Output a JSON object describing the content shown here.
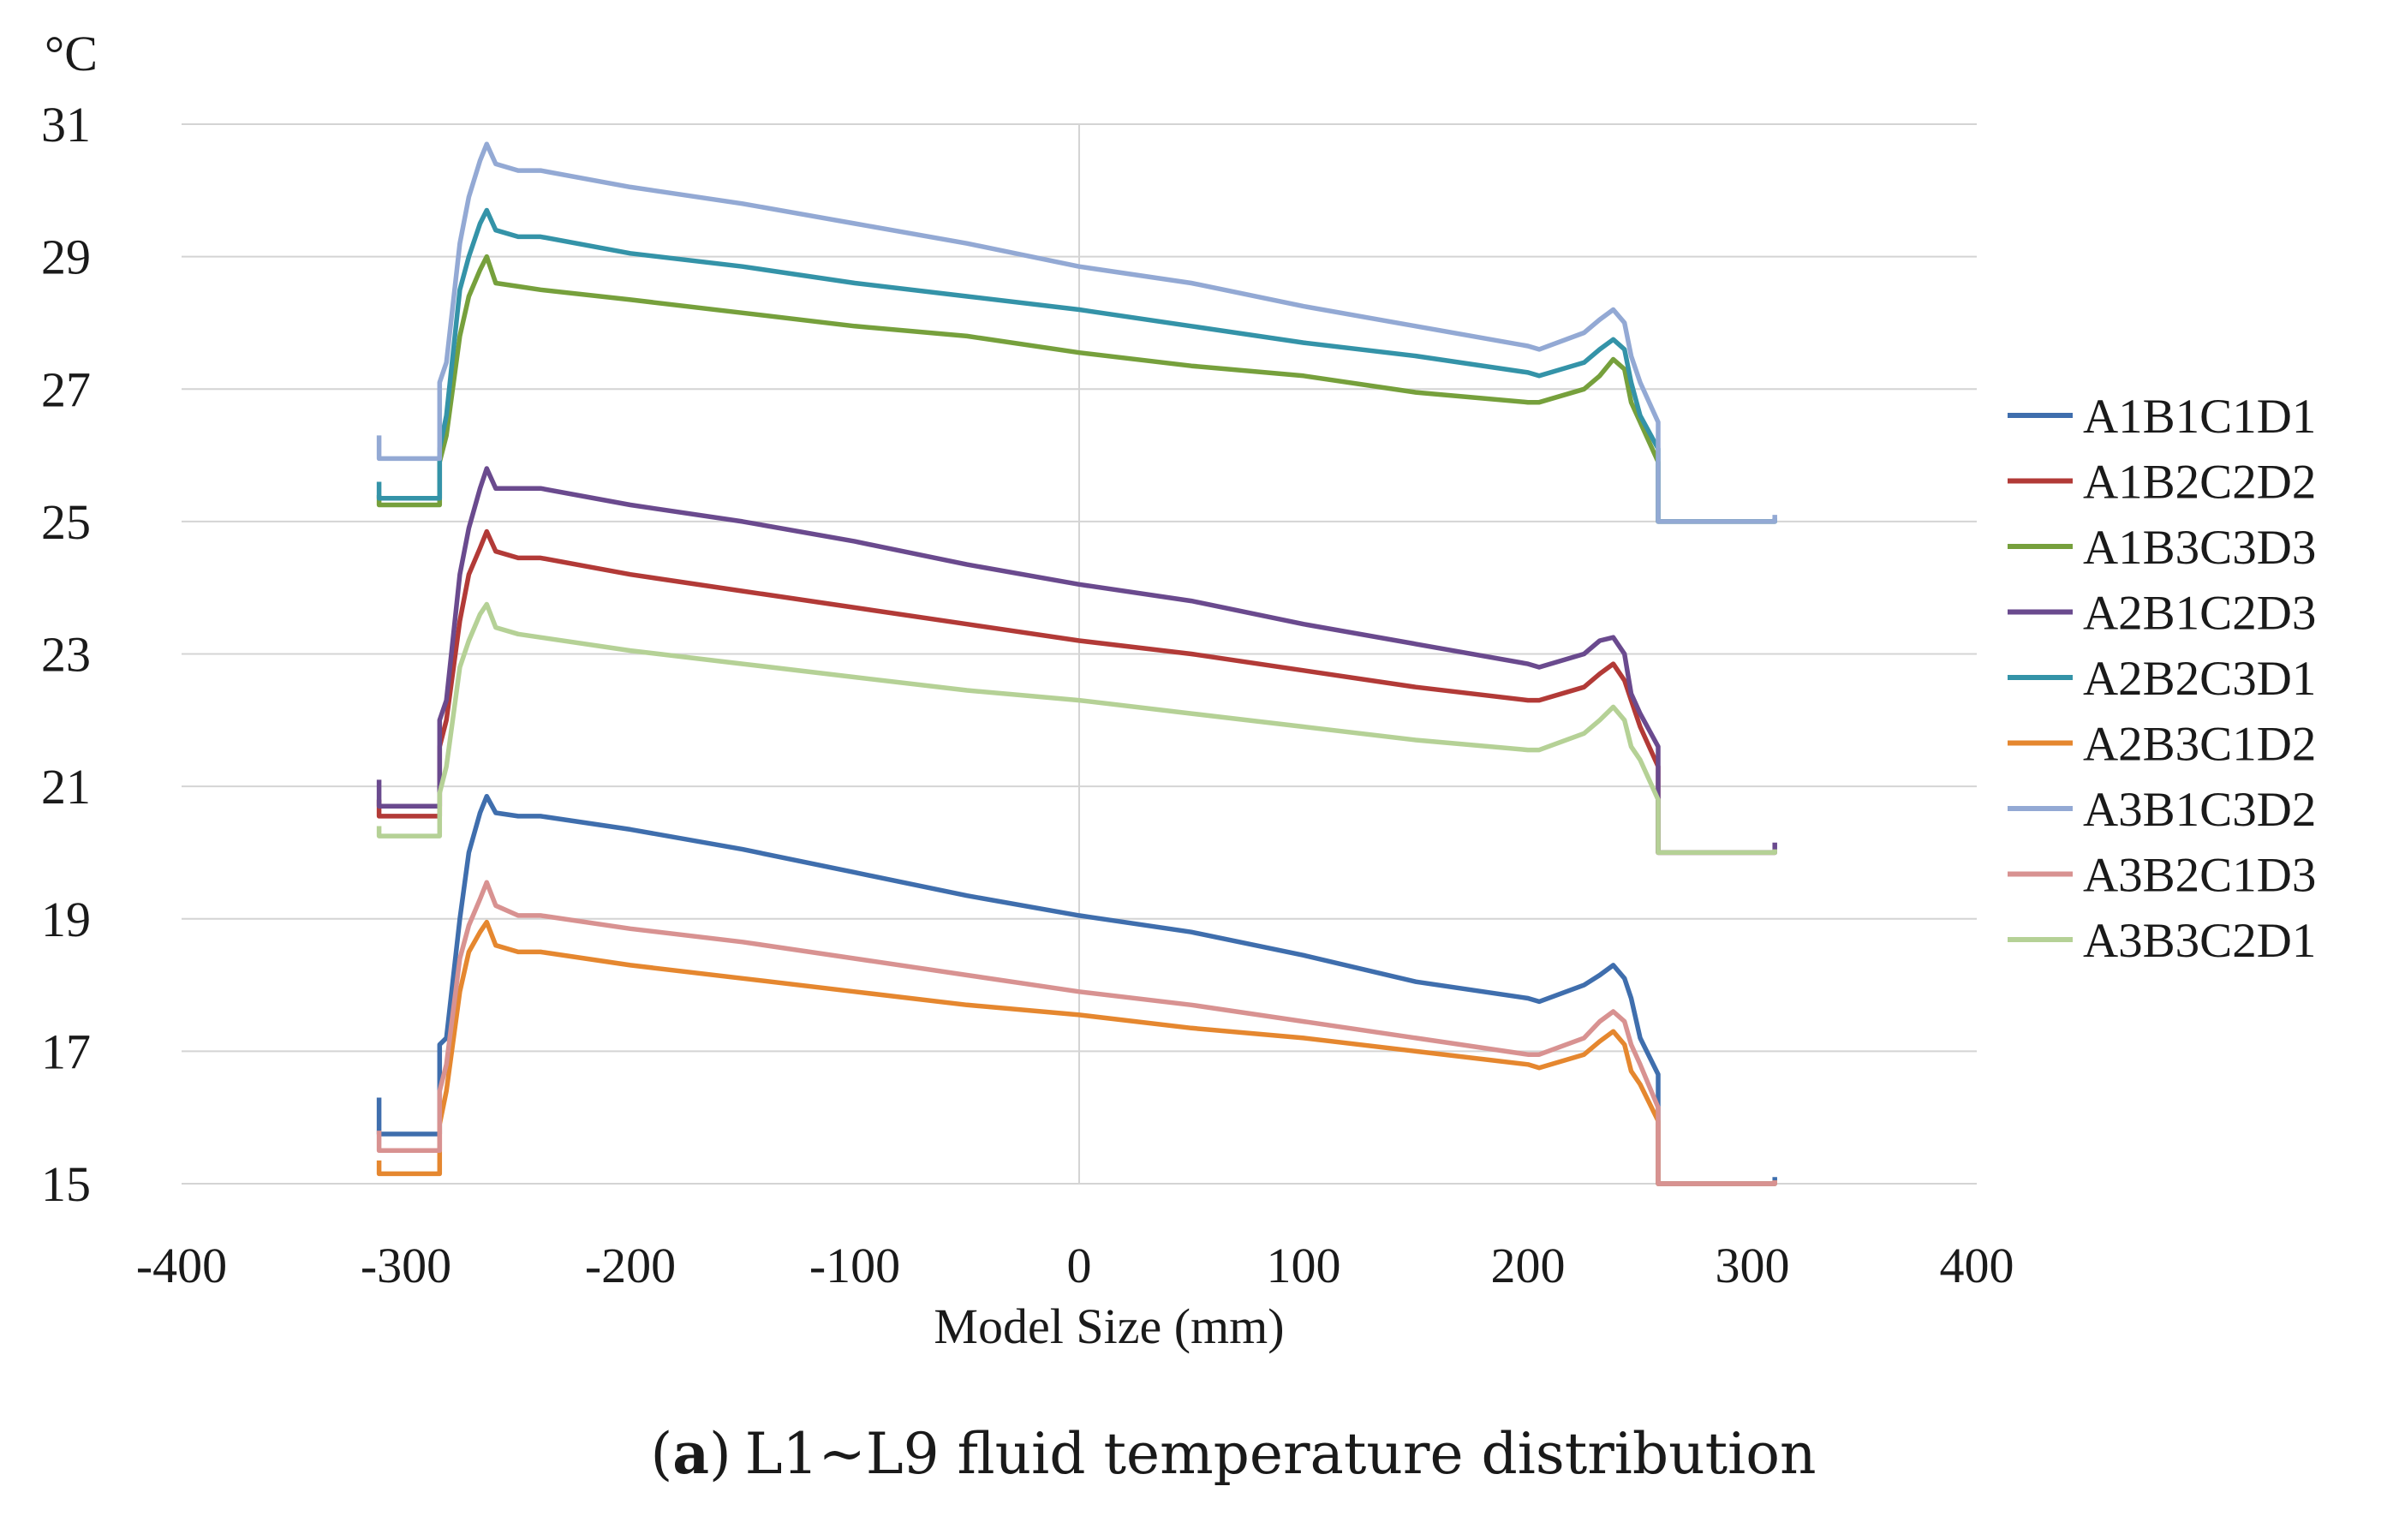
{
  "chart_data": {
    "type": "line",
    "unit_label": "°C",
    "xlabel": "Model Size (mm)",
    "ylabel": "",
    "caption": {
      "letter": "a",
      "open": "(",
      "close": ")",
      "text": "L1~L9 fluid temperature distribution"
    },
    "xlim": [
      -400,
      400
    ],
    "ylim": [
      15,
      31
    ],
    "xticks": [
      -400,
      -300,
      -200,
      -100,
      0,
      100,
      200,
      300,
      400
    ],
    "yticks": [
      15,
      17,
      19,
      21,
      23,
      25,
      27,
      29,
      31
    ],
    "grid": "horizontal",
    "legend_position": "right",
    "series": [
      {
        "name": "A1B1C1D1",
        "color": "#3F6EAD",
        "points": [
          [
            -312,
            16.3
          ],
          [
            -312,
            15.75
          ],
          [
            -285,
            15.75
          ],
          [
            -285,
            17.1
          ],
          [
            -282,
            17.2
          ],
          [
            -276,
            19.0
          ],
          [
            -272,
            20.0
          ],
          [
            -267,
            20.6
          ],
          [
            -264,
            20.85
          ],
          [
            -260,
            20.6
          ],
          [
            -250,
            20.55
          ],
          [
            -240,
            20.55
          ],
          [
            -200,
            20.35
          ],
          [
            -150,
            20.05
          ],
          [
            -100,
            19.7
          ],
          [
            -50,
            19.35
          ],
          [
            0,
            19.05
          ],
          [
            50,
            18.8
          ],
          [
            100,
            18.45
          ],
          [
            150,
            18.05
          ],
          [
            200,
            17.8
          ],
          [
            205,
            17.75
          ],
          [
            225,
            18.0
          ],
          [
            232,
            18.15
          ],
          [
            238,
            18.3
          ],
          [
            243,
            18.1
          ],
          [
            246,
            17.8
          ],
          [
            250,
            17.2
          ],
          [
            258,
            16.65
          ],
          [
            258,
            15.0
          ],
          [
            310,
            15.0
          ],
          [
            310,
            15.1
          ]
        ]
      },
      {
        "name": "A1B2C2D2",
        "color": "#B23A37",
        "points": [
          [
            -312,
            20.8
          ],
          [
            -312,
            20.55
          ],
          [
            -285,
            20.55
          ],
          [
            -285,
            21.6
          ],
          [
            -282,
            22.0
          ],
          [
            -276,
            23.5
          ],
          [
            -272,
            24.2
          ],
          [
            -267,
            24.6
          ],
          [
            -264,
            24.85
          ],
          [
            -260,
            24.55
          ],
          [
            -250,
            24.45
          ],
          [
            -240,
            24.45
          ],
          [
            -200,
            24.2
          ],
          [
            -150,
            23.95
          ],
          [
            -100,
            23.7
          ],
          [
            -50,
            23.45
          ],
          [
            0,
            23.2
          ],
          [
            50,
            23.0
          ],
          [
            100,
            22.75
          ],
          [
            150,
            22.5
          ],
          [
            200,
            22.3
          ],
          [
            205,
            22.3
          ],
          [
            225,
            22.5
          ],
          [
            232,
            22.7
          ],
          [
            238,
            22.85
          ],
          [
            243,
            22.6
          ],
          [
            246,
            22.3
          ],
          [
            250,
            21.9
          ],
          [
            258,
            21.3
          ],
          [
            258,
            20.0
          ],
          [
            310,
            20.0
          ],
          [
            310,
            20.05
          ]
        ]
      },
      {
        "name": "A1B3C3D3",
        "color": "#76A03C",
        "points": [
          [
            -312,
            25.4
          ],
          [
            -312,
            25.25
          ],
          [
            -285,
            25.25
          ],
          [
            -285,
            25.9
          ],
          [
            -282,
            26.3
          ],
          [
            -276,
            27.8
          ],
          [
            -272,
            28.4
          ],
          [
            -267,
            28.8
          ],
          [
            -264,
            29.0
          ],
          [
            -260,
            28.6
          ],
          [
            -250,
            28.55
          ],
          [
            -240,
            28.5
          ],
          [
            -200,
            28.35
          ],
          [
            -150,
            28.15
          ],
          [
            -100,
            27.95
          ],
          [
            -50,
            27.8
          ],
          [
            0,
            27.55
          ],
          [
            50,
            27.35
          ],
          [
            100,
            27.2
          ],
          [
            150,
            26.95
          ],
          [
            200,
            26.8
          ],
          [
            205,
            26.8
          ],
          [
            225,
            27.0
          ],
          [
            232,
            27.2
          ],
          [
            238,
            27.45
          ],
          [
            243,
            27.3
          ],
          [
            246,
            26.8
          ],
          [
            250,
            26.5
          ],
          [
            258,
            25.9
          ],
          [
            258,
            25.0
          ],
          [
            310,
            25.0
          ],
          [
            310,
            25.05
          ]
        ]
      },
      {
        "name": "A2B1C2D3",
        "color": "#6A4A8E",
        "points": [
          [
            -312,
            21.1
          ],
          [
            -312,
            20.7
          ],
          [
            -285,
            20.7
          ],
          [
            -285,
            22.0
          ],
          [
            -282,
            22.3
          ],
          [
            -276,
            24.2
          ],
          [
            -272,
            24.9
          ],
          [
            -267,
            25.5
          ],
          [
            -264,
            25.8
          ],
          [
            -260,
            25.5
          ],
          [
            -250,
            25.5
          ],
          [
            -240,
            25.5
          ],
          [
            -200,
            25.25
          ],
          [
            -150,
            25.0
          ],
          [
            -100,
            24.7
          ],
          [
            -50,
            24.35
          ],
          [
            0,
            24.05
          ],
          [
            50,
            23.8
          ],
          [
            100,
            23.45
          ],
          [
            150,
            23.15
          ],
          [
            200,
            22.85
          ],
          [
            205,
            22.8
          ],
          [
            225,
            23.0
          ],
          [
            232,
            23.2
          ],
          [
            238,
            23.25
          ],
          [
            243,
            23.0
          ],
          [
            246,
            22.4
          ],
          [
            250,
            22.1
          ],
          [
            258,
            21.6
          ],
          [
            258,
            20.0
          ],
          [
            310,
            20.0
          ],
          [
            310,
            20.15
          ]
        ]
      },
      {
        "name": "A2B2C3D1",
        "color": "#3493A8",
        "points": [
          [
            -312,
            25.6
          ],
          [
            -312,
            25.35
          ],
          [
            -285,
            25.35
          ],
          [
            -285,
            26.1
          ],
          [
            -282,
            26.6
          ],
          [
            -276,
            28.5
          ],
          [
            -272,
            29.0
          ],
          [
            -267,
            29.5
          ],
          [
            -264,
            29.7
          ],
          [
            -260,
            29.4
          ],
          [
            -250,
            29.3
          ],
          [
            -240,
            29.3
          ],
          [
            -200,
            29.05
          ],
          [
            -150,
            28.85
          ],
          [
            -100,
            28.6
          ],
          [
            -50,
            28.4
          ],
          [
            0,
            28.2
          ],
          [
            50,
            27.95
          ],
          [
            100,
            27.7
          ],
          [
            150,
            27.5
          ],
          [
            200,
            27.25
          ],
          [
            205,
            27.2
          ],
          [
            225,
            27.4
          ],
          [
            232,
            27.6
          ],
          [
            238,
            27.75
          ],
          [
            243,
            27.6
          ],
          [
            246,
            27.1
          ],
          [
            250,
            26.6
          ],
          [
            258,
            26.1
          ],
          [
            258,
            25.0
          ],
          [
            310,
            25.0
          ],
          [
            310,
            25.05
          ]
        ]
      },
      {
        "name": "A2B3C1D2",
        "color": "#E5872F",
        "points": [
          [
            -312,
            15.35
          ],
          [
            -312,
            15.15
          ],
          [
            -285,
            15.15
          ],
          [
            -285,
            15.9
          ],
          [
            -282,
            16.4
          ],
          [
            -276,
            17.9
          ],
          [
            -272,
            18.5
          ],
          [
            -267,
            18.8
          ],
          [
            -264,
            18.95
          ],
          [
            -260,
            18.6
          ],
          [
            -250,
            18.5
          ],
          [
            -240,
            18.5
          ],
          [
            -200,
            18.3
          ],
          [
            -150,
            18.1
          ],
          [
            -100,
            17.9
          ],
          [
            -50,
            17.7
          ],
          [
            0,
            17.55
          ],
          [
            50,
            17.35
          ],
          [
            100,
            17.2
          ],
          [
            150,
            17.0
          ],
          [
            200,
            16.8
          ],
          [
            205,
            16.75
          ],
          [
            225,
            16.95
          ],
          [
            232,
            17.15
          ],
          [
            238,
            17.3
          ],
          [
            243,
            17.1
          ],
          [
            246,
            16.7
          ],
          [
            250,
            16.5
          ],
          [
            258,
            15.95
          ],
          [
            258,
            15.0
          ],
          [
            310,
            15.0
          ],
          [
            310,
            15.05
          ]
        ]
      },
      {
        "name": "A3B1C3D2",
        "color": "#93A9D4",
        "points": [
          [
            -312,
            26.3
          ],
          [
            -312,
            25.95
          ],
          [
            -285,
            25.95
          ],
          [
            -285,
            27.1
          ],
          [
            -282,
            27.4
          ],
          [
            -276,
            29.2
          ],
          [
            -272,
            29.9
          ],
          [
            -267,
            30.45
          ],
          [
            -264,
            30.7
          ],
          [
            -260,
            30.4
          ],
          [
            -250,
            30.3
          ],
          [
            -240,
            30.3
          ],
          [
            -200,
            30.05
          ],
          [
            -150,
            29.8
          ],
          [
            -100,
            29.5
          ],
          [
            -50,
            29.2
          ],
          [
            0,
            28.85
          ],
          [
            50,
            28.6
          ],
          [
            100,
            28.25
          ],
          [
            150,
            27.95
          ],
          [
            200,
            27.65
          ],
          [
            205,
            27.6
          ],
          [
            225,
            27.85
          ],
          [
            232,
            28.05
          ],
          [
            238,
            28.2
          ],
          [
            243,
            28.0
          ],
          [
            246,
            27.5
          ],
          [
            250,
            27.1
          ],
          [
            258,
            26.5
          ],
          [
            258,
            25.0
          ],
          [
            310,
            25.0
          ],
          [
            310,
            25.1
          ]
        ]
      },
      {
        "name": "A3B2C1D3",
        "color": "#D89291",
        "points": [
          [
            -312,
            15.8
          ],
          [
            -312,
            15.5
          ],
          [
            -285,
            15.5
          ],
          [
            -285,
            16.4
          ],
          [
            -282,
            16.8
          ],
          [
            -276,
            18.4
          ],
          [
            -272,
            18.9
          ],
          [
            -267,
            19.3
          ],
          [
            -264,
            19.55
          ],
          [
            -260,
            19.2
          ],
          [
            -250,
            19.05
          ],
          [
            -240,
            19.05
          ],
          [
            -200,
            18.85
          ],
          [
            -150,
            18.65
          ],
          [
            -100,
            18.4
          ],
          [
            -50,
            18.15
          ],
          [
            0,
            17.9
          ],
          [
            50,
            17.7
          ],
          [
            100,
            17.45
          ],
          [
            150,
            17.2
          ],
          [
            200,
            16.95
          ],
          [
            205,
            16.95
          ],
          [
            225,
            17.2
          ],
          [
            232,
            17.45
          ],
          [
            238,
            17.6
          ],
          [
            243,
            17.45
          ],
          [
            246,
            17.1
          ],
          [
            250,
            16.8
          ],
          [
            258,
            16.15
          ],
          [
            258,
            15.0
          ],
          [
            310,
            15.0
          ],
          [
            310,
            15.05
          ]
        ]
      },
      {
        "name": "A3B3C2D1",
        "color": "#B5D196",
        "points": [
          [
            -312,
            20.4
          ],
          [
            -312,
            20.25
          ],
          [
            -285,
            20.25
          ],
          [
            -285,
            20.9
          ],
          [
            -282,
            21.3
          ],
          [
            -276,
            22.8
          ],
          [
            -272,
            23.2
          ],
          [
            -267,
            23.6
          ],
          [
            -264,
            23.75
          ],
          [
            -260,
            23.4
          ],
          [
            -250,
            23.3
          ],
          [
            -240,
            23.25
          ],
          [
            -200,
            23.05
          ],
          [
            -150,
            22.85
          ],
          [
            -100,
            22.65
          ],
          [
            -50,
            22.45
          ],
          [
            0,
            22.3
          ],
          [
            50,
            22.1
          ],
          [
            100,
            21.9
          ],
          [
            150,
            21.7
          ],
          [
            200,
            21.55
          ],
          [
            205,
            21.55
          ],
          [
            225,
            21.8
          ],
          [
            232,
            22.0
          ],
          [
            238,
            22.2
          ],
          [
            243,
            22.0
          ],
          [
            246,
            21.6
          ],
          [
            250,
            21.4
          ],
          [
            258,
            20.8
          ],
          [
            258,
            20.0
          ],
          [
            310,
            20.0
          ],
          [
            310,
            20.05
          ]
        ]
      }
    ]
  }
}
